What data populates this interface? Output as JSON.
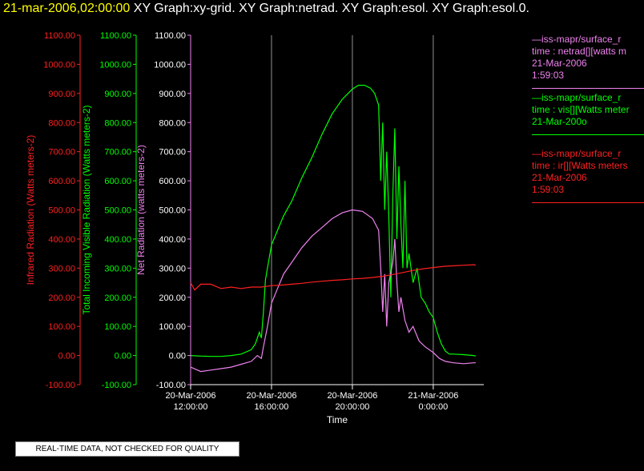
{
  "header": {
    "timestamp": "21-mar-2006,02:00:00",
    "graphs": "XY Graph:xy-grid.  XY Graph:netrad.  XY Graph:esol.  XY Graph:esol.0."
  },
  "colors": {
    "infrared": "#ff2020",
    "visible": "#00ff00",
    "net": "#ee82ee",
    "grid": "#cfcfcf"
  },
  "legend": [
    {
      "color": "#ee82ee",
      "lines": [
        "—iss-mapr/surface_r",
        "time : netrad[][watts m",
        "21-Mar-2006",
        "1:59:03"
      ]
    },
    {
      "color": "#00ff00",
      "lines": [
        "—iss-mapr/surface_r",
        "time : vis[][Watts meter",
        "21-Mar-200o"
      ]
    },
    {
      "color": "#ff2020",
      "lines": [
        "—iss-mapr/surface_r",
        "time : ir[][Watts meters",
        "21-Mar-2006",
        "1:59:03"
      ]
    }
  ],
  "footer": {
    "quality_note": "REAL-TIME DATA, NOT CHECKED FOR QUALITY"
  },
  "chart_data": {
    "type": "line",
    "xlabel": "Time",
    "x_ticks": [
      {
        "hours": 12,
        "date": "20-Mar-2006",
        "time": "12:00:00"
      },
      {
        "hours": 16,
        "date": "20-Mar-2006",
        "time": "16:00:00"
      },
      {
        "hours": 20,
        "date": "20-Mar-2006",
        "time": "20:00:00"
      },
      {
        "hours": 24,
        "date": "21-Mar-2006",
        "time": "0:00:00"
      }
    ],
    "xlim_hours": [
      12,
      26.5
    ],
    "grid_vertical_hours": [
      16,
      20,
      24
    ],
    "y_axes": [
      {
        "label": "Infrared Radiation (Watts meters-2)",
        "color": "#ff2020",
        "ylim": [
          -100,
          1100
        ]
      },
      {
        "label": "Total Incoming Visible Radiation (Watts meters-2)",
        "color": "#00ff00",
        "ylim": [
          -100,
          1100
        ]
      },
      {
        "label": "Net Radiation (watts meters-2)",
        "color": "#ee82ee",
        "ylim": [
          -100,
          1100
        ]
      }
    ],
    "y_ticks": [
      "-100.00",
      "0.00",
      "100.00",
      "200.00",
      "300.00",
      "400.00",
      "500.00",
      "600.00",
      "700.00",
      "800.00",
      "900.00",
      "1000.00",
      "1100.00"
    ],
    "series": [
      {
        "key": "vis",
        "color": "#00ff00",
        "points": [
          [
            12,
            0
          ],
          [
            12.5,
            -2
          ],
          [
            13,
            -3
          ],
          [
            13.5,
            -3
          ],
          [
            14,
            0
          ],
          [
            14.5,
            5
          ],
          [
            15,
            20
          ],
          [
            15.2,
            40
          ],
          [
            15.4,
            80
          ],
          [
            15.5,
            60
          ],
          [
            15.6,
            150
          ],
          [
            15.7,
            260
          ],
          [
            15.8,
            300
          ],
          [
            15.9,
            340
          ],
          [
            16,
            380
          ],
          [
            16.3,
            430
          ],
          [
            16.6,
            480
          ],
          [
            17,
            530
          ],
          [
            17.5,
            610
          ],
          [
            18,
            680
          ],
          [
            18.5,
            760
          ],
          [
            19,
            830
          ],
          [
            19.5,
            880
          ],
          [
            20,
            915
          ],
          [
            20.3,
            928
          ],
          [
            20.6,
            928
          ],
          [
            20.9,
            918
          ],
          [
            21.1,
            900
          ],
          [
            21.3,
            860
          ],
          [
            21.4,
            600
          ],
          [
            21.5,
            800
          ],
          [
            21.6,
            500
          ],
          [
            21.7,
            700
          ],
          [
            21.8,
            480
          ],
          [
            21.9,
            200
          ],
          [
            22,
            550
          ],
          [
            22.1,
            780
          ],
          [
            22.2,
            400
          ],
          [
            22.3,
            650
          ],
          [
            22.4,
            450
          ],
          [
            22.5,
            300
          ],
          [
            22.6,
            600
          ],
          [
            22.7,
            300
          ],
          [
            22.8,
            350
          ],
          [
            23,
            250
          ],
          [
            23.2,
            300
          ],
          [
            23.4,
            200
          ],
          [
            23.6,
            180
          ],
          [
            23.8,
            150
          ],
          [
            24,
            130
          ],
          [
            24.2,
            80
          ],
          [
            24.4,
            40
          ],
          [
            24.6,
            15
          ],
          [
            24.8,
            5
          ],
          [
            25,
            5
          ],
          [
            25.5,
            3
          ],
          [
            26,
            0
          ],
          [
            26.1,
            -2
          ]
        ]
      },
      {
        "key": "net",
        "color": "#ee82ee",
        "points": [
          [
            12,
            -40
          ],
          [
            12.5,
            -55
          ],
          [
            13,
            -50
          ],
          [
            13.5,
            -45
          ],
          [
            14,
            -40
          ],
          [
            14.5,
            -30
          ],
          [
            15,
            -20
          ],
          [
            15.3,
            0
          ],
          [
            15.5,
            -10
          ],
          [
            15.6,
            30
          ],
          [
            15.8,
            100
          ],
          [
            16,
            180
          ],
          [
            16.3,
            230
          ],
          [
            16.6,
            280
          ],
          [
            17,
            320
          ],
          [
            17.5,
            370
          ],
          [
            18,
            410
          ],
          [
            18.5,
            440
          ],
          [
            19,
            470
          ],
          [
            19.5,
            490
          ],
          [
            20,
            500
          ],
          [
            20.5,
            495
          ],
          [
            21,
            470
          ],
          [
            21.3,
            430
          ],
          [
            21.4,
            300
          ],
          [
            21.5,
            150
          ],
          [
            21.6,
            280
          ],
          [
            21.7,
            100
          ],
          [
            21.8,
            250
          ],
          [
            22,
            320
          ],
          [
            22.1,
            400
          ],
          [
            22.2,
            250
          ],
          [
            22.3,
            150
          ],
          [
            22.4,
            200
          ],
          [
            22.6,
            120
          ],
          [
            22.8,
            80
          ],
          [
            23,
            100
          ],
          [
            23.3,
            50
          ],
          [
            23.6,
            30
          ],
          [
            24,
            10
          ],
          [
            24.3,
            -10
          ],
          [
            24.6,
            -20
          ],
          [
            25,
            -25
          ],
          [
            25.5,
            -28
          ],
          [
            26,
            -25
          ],
          [
            26.1,
            -25
          ]
        ]
      },
      {
        "key": "ir",
        "color": "#ff2020",
        "points": [
          [
            12,
            250
          ],
          [
            12.2,
            225
          ],
          [
            12.5,
            245
          ],
          [
            13,
            245
          ],
          [
            13.5,
            230
          ],
          [
            14,
            235
          ],
          [
            14.5,
            230
          ],
          [
            15,
            235
          ],
          [
            15.5,
            235
          ],
          [
            16,
            240
          ],
          [
            16.5,
            242
          ],
          [
            17,
            245
          ],
          [
            17.5,
            248
          ],
          [
            18,
            252
          ],
          [
            18.5,
            255
          ],
          [
            19,
            258
          ],
          [
            19.5,
            260
          ],
          [
            20,
            263
          ],
          [
            20.5,
            265
          ],
          [
            21,
            268
          ],
          [
            21.5,
            272
          ],
          [
            22,
            278
          ],
          [
            22.5,
            285
          ],
          [
            23,
            292
          ],
          [
            23.5,
            298
          ],
          [
            24,
            302
          ],
          [
            24.5,
            306
          ],
          [
            25,
            308
          ],
          [
            25.5,
            310
          ],
          [
            26,
            312
          ],
          [
            26.1,
            310
          ]
        ]
      }
    ]
  }
}
